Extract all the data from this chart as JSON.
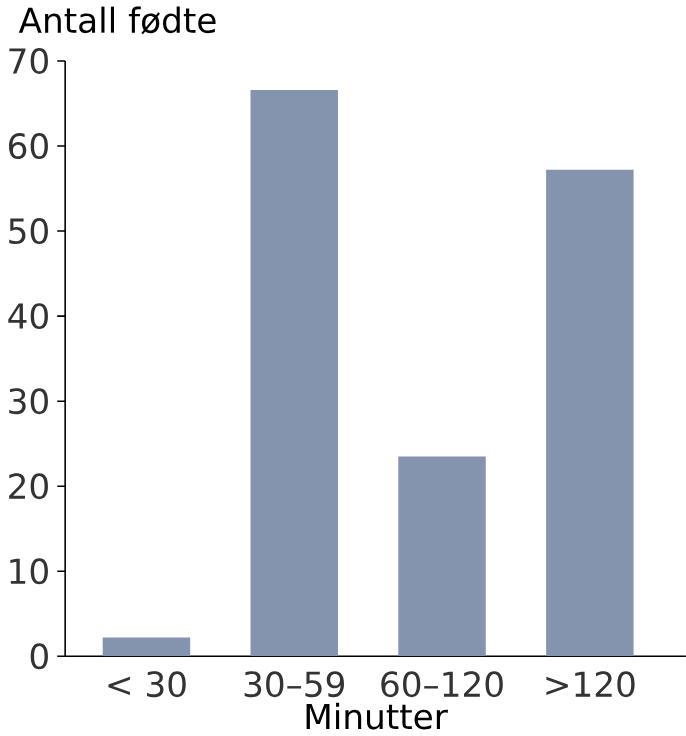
{
  "chart_data": {
    "type": "bar",
    "ylabel": "Antall fødte",
    "xlabel": "Minutter",
    "categories": [
      "< 30",
      "30–59",
      "60–120",
      ">120"
    ],
    "values": [
      2.2,
      66.6,
      23.5,
      57.2
    ],
    "color": "#8594ae",
    "ylim": [
      0,
      70
    ],
    "yticks": [
      0,
      10,
      20,
      30,
      40,
      50,
      60,
      70
    ],
    "grid": false
  }
}
